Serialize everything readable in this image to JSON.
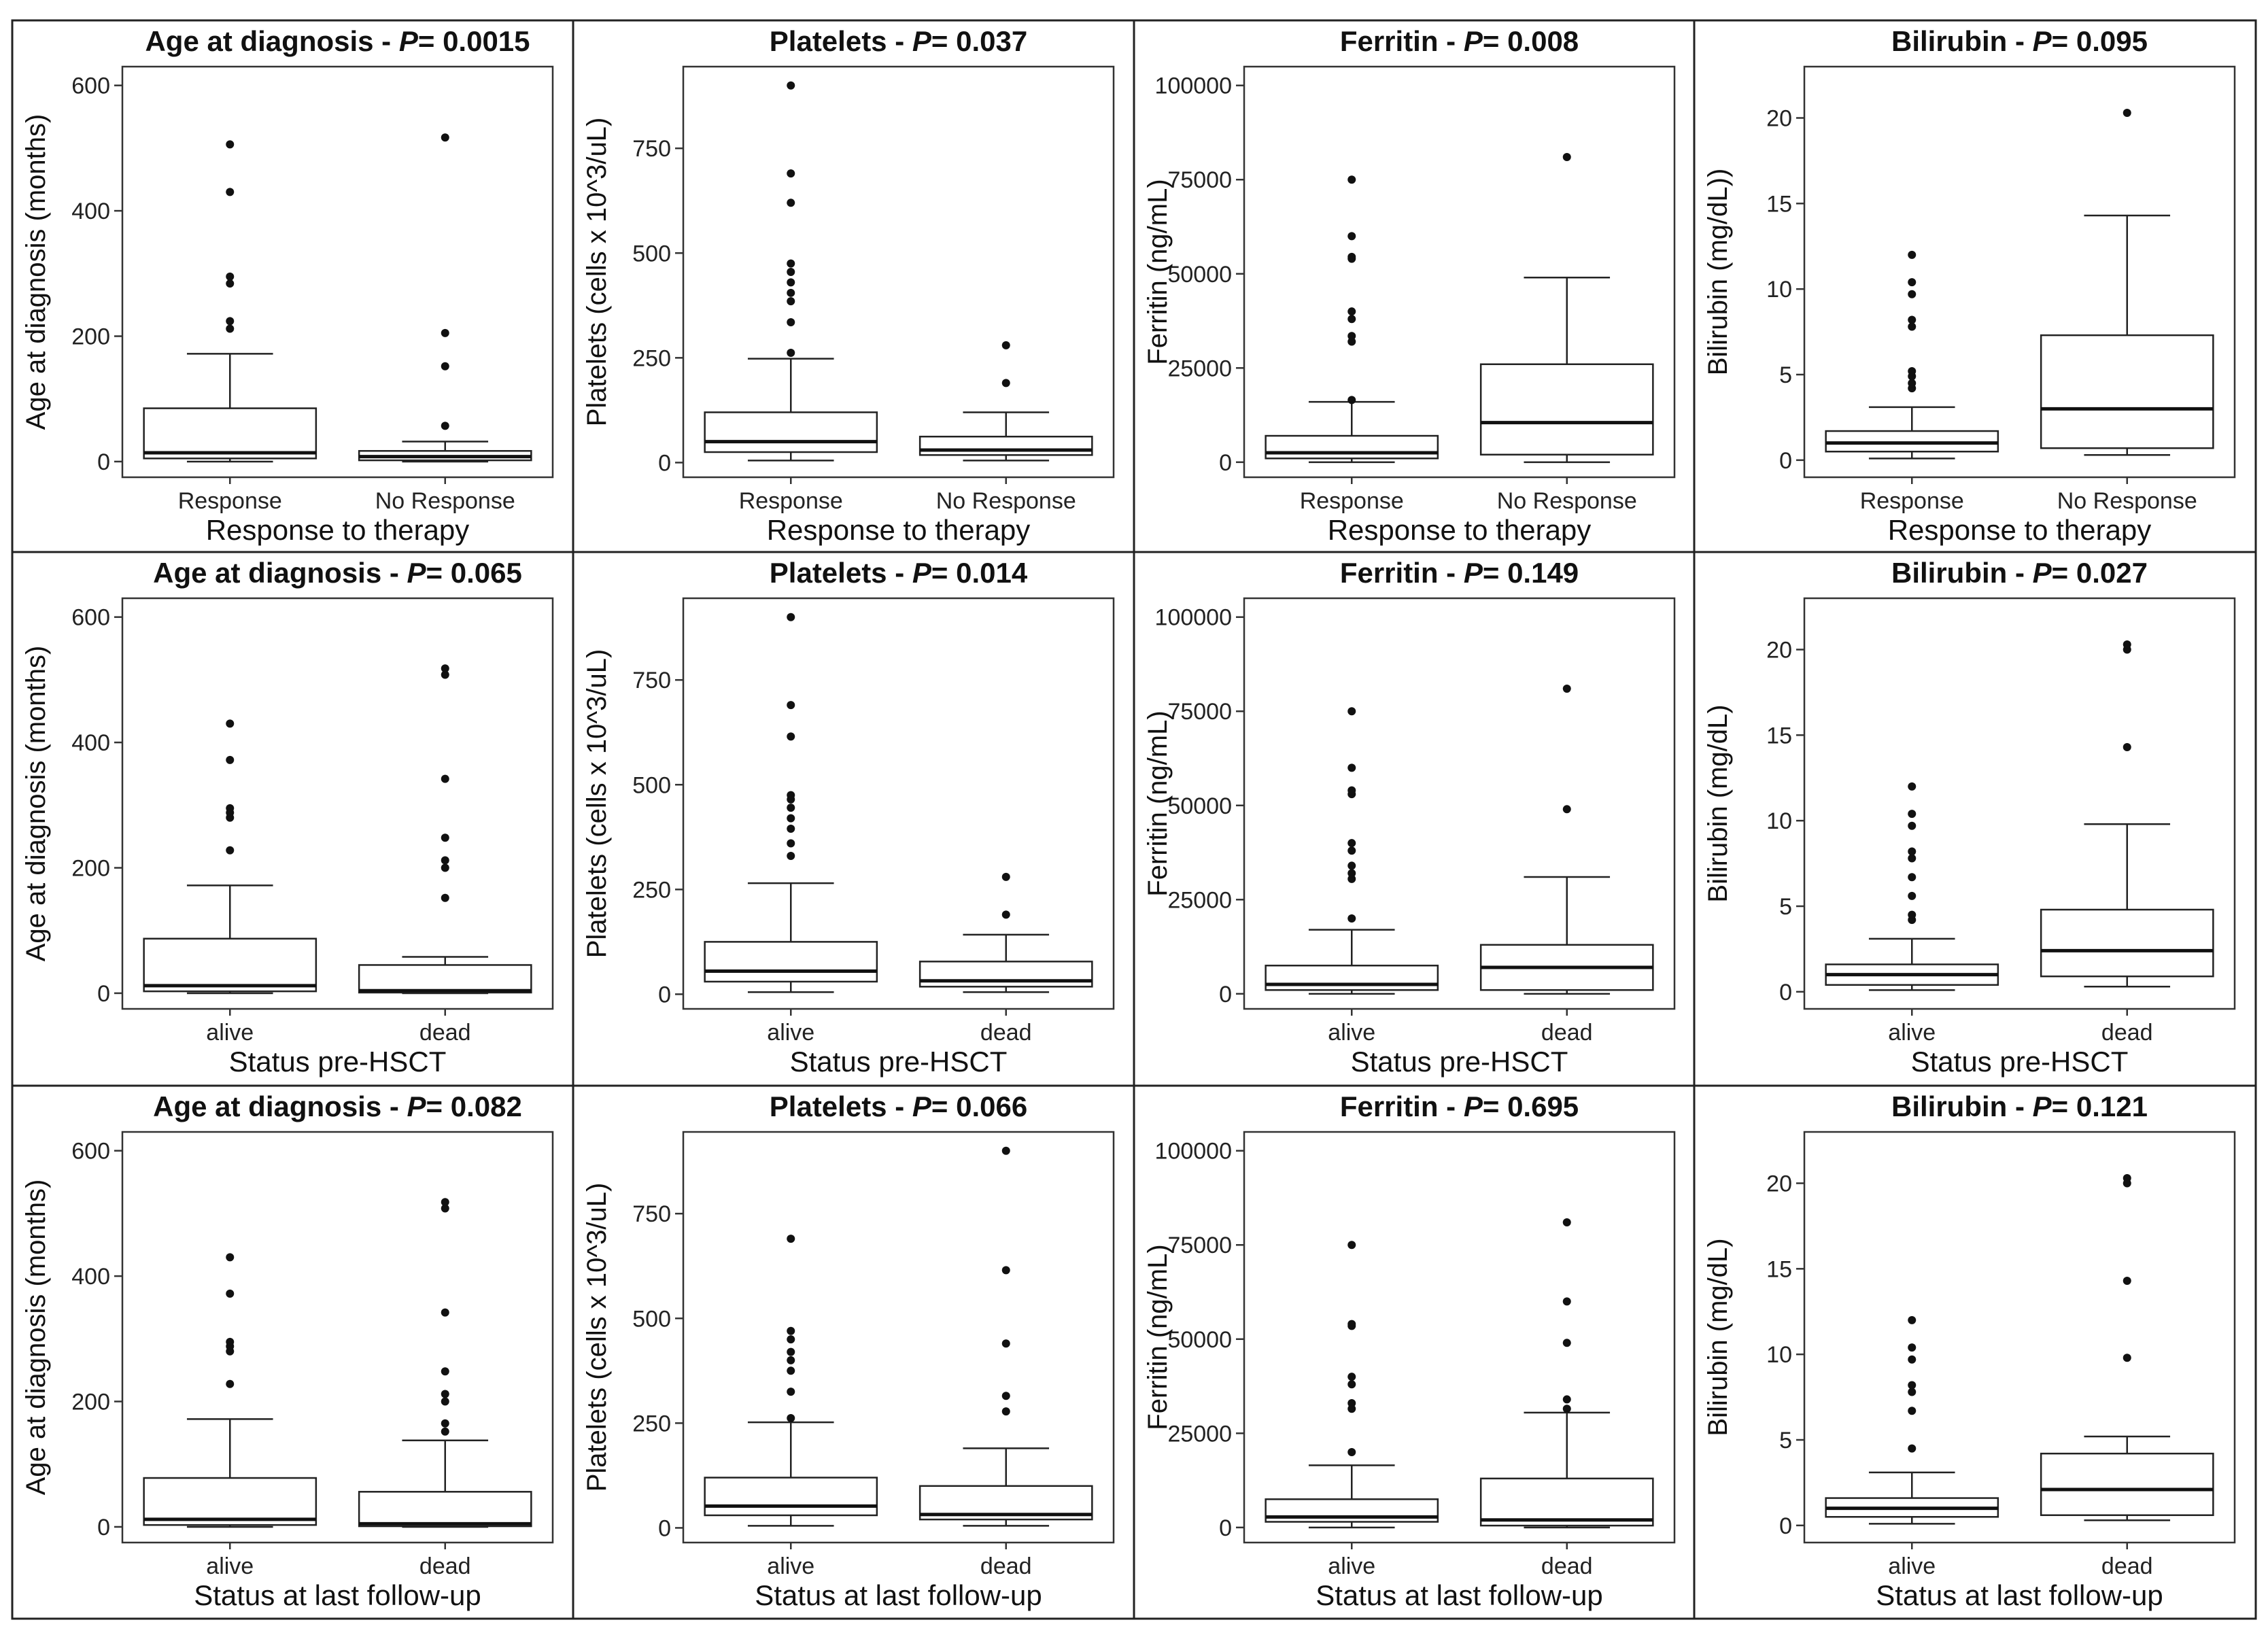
{
  "chart_data": [
    {
      "type": "box",
      "title_var": "Age at diagnosis",
      "p_value": "0.0015",
      "xlabel": "Response to therapy",
      "ylabel": "Age at diagnosis (months)",
      "ylim": [
        -25,
        630
      ],
      "yticks": [
        0,
        200,
        400,
        600
      ],
      "categories": [
        "Response",
        "No Response"
      ],
      "boxes": [
        {
          "whislo": 0,
          "q1": 5,
          "med": 14,
          "q3": 85,
          "whishi": 172,
          "outliers": [
            212,
            224,
            284,
            295,
            430,
            506
          ]
        },
        {
          "whislo": 0,
          "q1": 2,
          "med": 8,
          "q3": 17,
          "whishi": 32,
          "outliers": [
            57,
            152,
            205,
            517
          ]
        }
      ]
    },
    {
      "type": "box",
      "title_var": "Platelets",
      "p_value": "0.037",
      "xlabel": "Response to therapy",
      "ylabel": "Platelets (cells x 10^3/uL)",
      "ylim": [
        -35,
        945
      ],
      "yticks": [
        0,
        250,
        500,
        750
      ],
      "categories": [
        "Response",
        "No Response"
      ],
      "boxes": [
        {
          "whislo": 5,
          "q1": 25,
          "med": 50,
          "q3": 120,
          "whishi": 248,
          "outliers": [
            262,
            335,
            385,
            405,
            430,
            455,
            475,
            620,
            690,
            900
          ]
        },
        {
          "whislo": 5,
          "q1": 18,
          "med": 30,
          "q3": 62,
          "whishi": 120,
          "outliers": [
            190,
            280
          ]
        }
      ]
    },
    {
      "type": "box",
      "title_var": "Ferritin",
      "p_value": "0.008",
      "xlabel": "Response to therapy",
      "ylabel": "Ferritin (ng/mL)",
      "ylim": [
        -4000,
        105000
      ],
      "yticks": [
        0,
        25000,
        50000,
        75000,
        100000
      ],
      "categories": [
        "Response",
        "No Response"
      ],
      "boxes": [
        {
          "whislo": 0,
          "q1": 1000,
          "med": 2500,
          "q3": 7000,
          "whishi": 16000,
          "outliers": [
            16500,
            32000,
            33500,
            38000,
            40000,
            54000,
            54500,
            60000,
            75000
          ]
        },
        {
          "whislo": 0,
          "q1": 2000,
          "med": 10500,
          "q3": 26000,
          "whishi": 49000,
          "outliers": [
            81000
          ]
        }
      ]
    },
    {
      "type": "box",
      "title_var": "Bilirubin",
      "p_value": "0.095",
      "xlabel": "Response to therapy",
      "ylabel": "Bilirubin (mg/dL))",
      "ylim": [
        -1,
        23
      ],
      "yticks": [
        0,
        5,
        10,
        15,
        20
      ],
      "categories": [
        "Response",
        "No Response"
      ],
      "boxes": [
        {
          "whislo": 0.1,
          "q1": 0.5,
          "med": 1.0,
          "q3": 1.7,
          "whishi": 3.1,
          "outliers": [
            4.2,
            4.5,
            4.9,
            5.2,
            7.8,
            8.2,
            9.7,
            10.4,
            12.0
          ]
        },
        {
          "whislo": 0.3,
          "q1": 0.7,
          "med": 3.0,
          "q3": 7.3,
          "whishi": 14.3,
          "outliers": [
            20.3
          ]
        }
      ]
    },
    {
      "type": "box",
      "title_var": "Age at diagnosis",
      "p_value": "0.065",
      "xlabel": "Status pre-HSCT",
      "ylabel": "Age at diagnosis (months)",
      "ylim": [
        -25,
        630
      ],
      "yticks": [
        0,
        200,
        400,
        600
      ],
      "categories": [
        "alive",
        "dead"
      ],
      "boxes": [
        {
          "whislo": 0,
          "q1": 3,
          "med": 12,
          "q3": 87,
          "whishi": 172,
          "outliers": [
            228,
            280,
            288,
            295,
            372,
            430
          ]
        },
        {
          "whislo": 0,
          "q1": 1,
          "med": 4,
          "q3": 45,
          "whishi": 58,
          "outliers": [
            152,
            200,
            212,
            248,
            342,
            508,
            518
          ]
        }
      ]
    },
    {
      "type": "box",
      "title_var": "Platelets",
      "p_value": "0.014",
      "xlabel": "Status pre-HSCT",
      "ylabel": "Platelets (cells x 10^3/uL)",
      "ylim": [
        -35,
        945
      ],
      "yticks": [
        0,
        250,
        500,
        750
      ],
      "categories": [
        "alive",
        "dead"
      ],
      "boxes": [
        {
          "whislo": 5,
          "q1": 30,
          "med": 55,
          "q3": 125,
          "whishi": 265,
          "outliers": [
            330,
            360,
            395,
            420,
            445,
            465,
            475,
            615,
            690,
            900
          ]
        },
        {
          "whislo": 5,
          "q1": 18,
          "med": 32,
          "q3": 78,
          "whishi": 142,
          "outliers": [
            190,
            280
          ]
        }
      ]
    },
    {
      "type": "box",
      "title_var": "Ferritin",
      "p_value": "0.149",
      "xlabel": "Status pre-HSCT",
      "ylabel": "Ferritin (ng/mL)",
      "ylim": [
        -4000,
        105000
      ],
      "yticks": [
        0,
        25000,
        50000,
        75000,
        100000
      ],
      "categories": [
        "alive",
        "dead"
      ],
      "boxes": [
        {
          "whislo": 0,
          "q1": 1000,
          "med": 2500,
          "q3": 7500,
          "whishi": 17000,
          "outliers": [
            20000,
            30500,
            32000,
            34000,
            38000,
            40000,
            53000,
            54000,
            60000,
            75000
          ]
        },
        {
          "whislo": 0,
          "q1": 1000,
          "med": 7000,
          "q3": 13000,
          "whishi": 31000,
          "outliers": [
            49000,
            81000
          ]
        }
      ]
    },
    {
      "type": "box",
      "title_var": "Bilirubin",
      "p_value": "0.027",
      "xlabel": "Status pre-HSCT",
      "ylabel": "Bilirubin (mg/dL)",
      "ylim": [
        -1,
        23
      ],
      "yticks": [
        0,
        5,
        10,
        15,
        20
      ],
      "categories": [
        "alive",
        "dead"
      ],
      "boxes": [
        {
          "whislo": 0.1,
          "q1": 0.4,
          "med": 1.0,
          "q3": 1.6,
          "whishi": 3.1,
          "outliers": [
            4.2,
            4.5,
            5.6,
            6.7,
            7.8,
            8.2,
            9.7,
            10.4,
            12.0
          ]
        },
        {
          "whislo": 0.3,
          "q1": 0.9,
          "med": 2.4,
          "q3": 4.8,
          "whishi": 9.8,
          "outliers": [
            14.3,
            20.0,
            20.3
          ]
        }
      ]
    },
    {
      "type": "box",
      "title_var": "Age at diagnosis",
      "p_value": "0.082",
      "xlabel": "Status at last follow-up",
      "ylabel": "Age at diagnosis (months)",
      "ylim": [
        -25,
        630
      ],
      "yticks": [
        0,
        200,
        400,
        600
      ],
      "categories": [
        "alive",
        "dead"
      ],
      "boxes": [
        {
          "whislo": 0,
          "q1": 3,
          "med": 12,
          "q3": 78,
          "whishi": 172,
          "outliers": [
            228,
            280,
            288,
            295,
            372,
            430
          ]
        },
        {
          "whislo": 0,
          "q1": 1,
          "med": 5,
          "q3": 56,
          "whishi": 138,
          "outliers": [
            152,
            165,
            200,
            212,
            248,
            342,
            508,
            518
          ]
        }
      ]
    },
    {
      "type": "box",
      "title_var": "Platelets",
      "p_value": "0.066",
      "xlabel": "Status at last follow-up",
      "ylabel": "Platelets (cells x 10^3/uL)",
      "ylim": [
        -35,
        945
      ],
      "yticks": [
        0,
        250,
        500,
        750
      ],
      "categories": [
        "alive",
        "dead"
      ],
      "boxes": [
        {
          "whislo": 5,
          "q1": 30,
          "med": 52,
          "q3": 120,
          "whishi": 252,
          "outliers": [
            262,
            325,
            375,
            400,
            420,
            450,
            470,
            690
          ]
        },
        {
          "whislo": 5,
          "q1": 20,
          "med": 32,
          "q3": 100,
          "whishi": 190,
          "outliers": [
            278,
            315,
            440,
            615,
            900
          ]
        }
      ]
    },
    {
      "type": "box",
      "title_var": "Ferritin",
      "p_value": "0.695",
      "xlabel": "Status at last follow-up",
      "ylabel": "Ferritin (ng/mL)",
      "ylim": [
        -4000,
        105000
      ],
      "yticks": [
        0,
        25000,
        50000,
        75000,
        100000
      ],
      "categories": [
        "alive",
        "dead"
      ],
      "boxes": [
        {
          "whislo": 0,
          "q1": 1500,
          "med": 2800,
          "q3": 7500,
          "whishi": 16500,
          "outliers": [
            20000,
            31500,
            33000,
            38000,
            40000,
            53500,
            54000,
            75000
          ]
        },
        {
          "whislo": 0,
          "q1": 500,
          "med": 2000,
          "q3": 13000,
          "whishi": 30500,
          "outliers": [
            31500,
            34000,
            49000,
            60000,
            81000
          ]
        }
      ]
    },
    {
      "type": "box",
      "title_var": "Bilirubin",
      "p_value": "0.121",
      "xlabel": "Status at last follow-up",
      "ylabel": "Bilirubin (mg/dL)",
      "ylim": [
        -1,
        23
      ],
      "yticks": [
        0,
        5,
        10,
        15,
        20
      ],
      "categories": [
        "alive",
        "dead"
      ],
      "boxes": [
        {
          "whislo": 0.1,
          "q1": 0.5,
          "med": 1.0,
          "q3": 1.6,
          "whishi": 3.1,
          "outliers": [
            4.5,
            6.7,
            7.8,
            8.2,
            9.7,
            10.4,
            12.0
          ]
        },
        {
          "whislo": 0.3,
          "q1": 0.6,
          "med": 2.1,
          "q3": 4.2,
          "whishi": 5.2,
          "outliers": [
            9.8,
            14.3,
            20.0,
            20.3
          ]
        }
      ]
    }
  ]
}
